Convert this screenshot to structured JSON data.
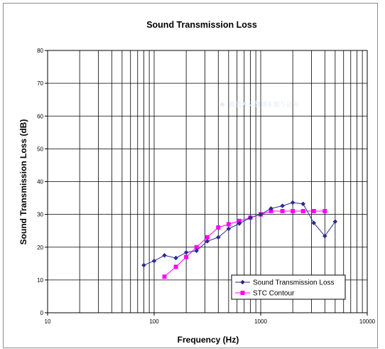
{
  "chart_data": {
    "type": "line",
    "title": "Sound Transmission Loss",
    "xlabel": "Frequency (Hz)",
    "ylabel": "Sound Transmission Loss (dB)",
    "xscale": "log",
    "xlim": [
      10,
      10000
    ],
    "ylim": [
      0,
      80
    ],
    "x_ticks": [
      "10",
      "100",
      "1000",
      "10000"
    ],
    "y_ticks": [
      "0",
      "10",
      "20",
      "30",
      "40",
      "50",
      "60",
      "70",
      "80"
    ],
    "grid": true,
    "legend_position": "bottom-right",
    "series": [
      {
        "name": "Sound Transmission Loss",
        "color": "#2b2b8f",
        "marker": "diamond",
        "x": [
          80,
          100,
          125,
          160,
          200,
          250,
          315,
          400,
          500,
          630,
          800,
          1000,
          1250,
          1600,
          2000,
          2500,
          3150,
          4000,
          5000
        ],
        "y": [
          14.5,
          15.8,
          17.5,
          16.7,
          18.4,
          18.9,
          21.8,
          23.0,
          25.6,
          27.2,
          29.0,
          30.0,
          31.8,
          32.6,
          33.6,
          33.2,
          27.4,
          23.4,
          27.8
        ]
      },
      {
        "name": "STC Contour",
        "color": "#ff00ff",
        "marker": "square",
        "x": [
          125,
          160,
          200,
          250,
          315,
          400,
          500,
          630,
          800,
          1000,
          1250,
          1600,
          2000,
          2500,
          3150,
          4000
        ],
        "y": [
          11,
          14,
          17,
          20,
          23,
          26,
          27,
          28,
          29,
          30,
          31,
          31,
          31,
          31,
          31,
          31
        ]
      }
    ]
  },
  "watermark": {
    "text": "画面外の領域を取り込み"
  }
}
